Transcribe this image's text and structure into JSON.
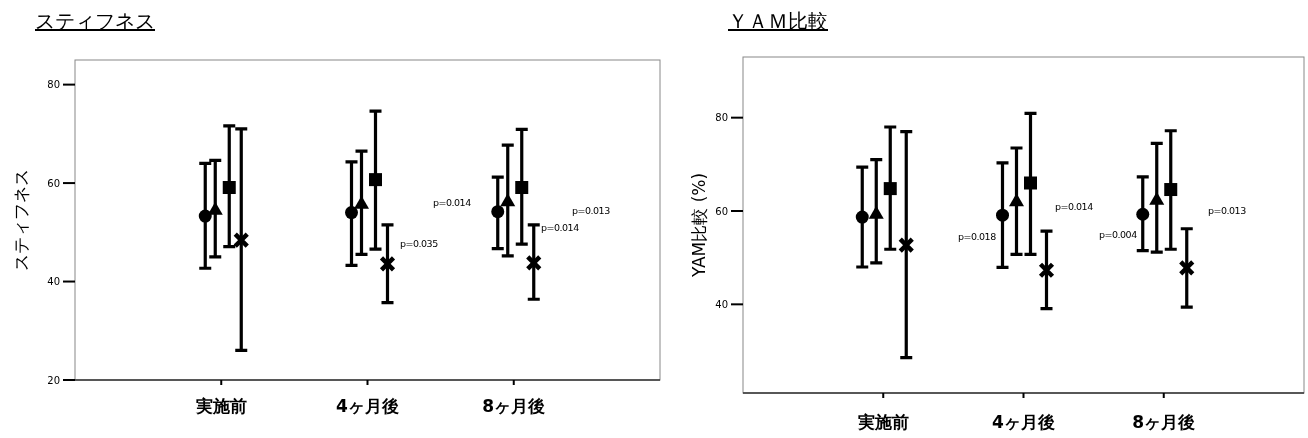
{
  "chart_data": [
    {
      "type": "scatter",
      "title": "スティフネス",
      "ylabel": "スティフネス",
      "categories": [
        "実施前",
        "4ヶ月後",
        "8ヶ月後"
      ],
      "ylim": [
        20,
        85
      ],
      "yticks": [
        20,
        40,
        60,
        80
      ],
      "grid": false,
      "series": [
        {
          "marker": "circle",
          "color": "#000000",
          "values": [
            53.3,
            54.0,
            54.2
          ],
          "errors": [
            [
              42.7,
              64.0
            ],
            [
              43.3,
              64.3
            ],
            [
              46.7,
              61.2
            ]
          ]
        },
        {
          "marker": "triangle",
          "color": "#000000",
          "values": [
            54.6,
            55.8,
            56.3
          ],
          "errors": [
            [
              45.0,
              64.6
            ],
            [
              45.5,
              66.5
            ],
            [
              45.2,
              67.7
            ]
          ]
        },
        {
          "marker": "square",
          "color": "#000000",
          "values": [
            59.1,
            60.7,
            59.1
          ],
          "errors": [
            [
              47.1,
              71.6
            ],
            [
              46.6,
              74.6
            ],
            [
              47.6,
              70.9
            ]
          ]
        },
        {
          "marker": "cross",
          "color": "#000000",
          "values": [
            48.4,
            43.6,
            43.8
          ],
          "errors": [
            [
              26.0,
              71.0
            ],
            [
              35.7,
              51.5
            ],
            [
              36.4,
              51.5
            ]
          ]
        }
      ],
      "annotations": [
        "p=0.014",
        "p=0.035",
        "p=0.013",
        "p=0.014"
      ]
    },
    {
      "type": "scatter",
      "title": "ＹＡＭ比較",
      "ylabel": "YAM比較 (%)",
      "categories": [
        "実施前",
        "4ヶ月後",
        "8ヶ月後"
      ],
      "ylim": [
        21,
        93
      ],
      "yticks": [
        40,
        60,
        80
      ],
      "grid": false,
      "series": [
        {
          "marker": "circle",
          "color": "#000000",
          "values": [
            58.7,
            59.1,
            59.3
          ],
          "errors": [
            [
              48.0,
              69.4
            ],
            [
              47.9,
              70.3
            ],
            [
              51.5,
              67.3
            ]
          ]
        },
        {
          "marker": "triangle",
          "color": "#000000",
          "values": [
            59.4,
            62.1,
            62.4
          ],
          "errors": [
            [
              48.9,
              71.0
            ],
            [
              50.7,
              73.5
            ],
            [
              51.2,
              74.5
            ]
          ]
        },
        {
          "marker": "square",
          "color": "#000000",
          "values": [
            64.8,
            66.0,
            64.6
          ],
          "errors": [
            [
              51.8,
              78.0
            ],
            [
              50.7,
              80.9
            ],
            [
              51.8,
              77.2
            ]
          ]
        },
        {
          "marker": "cross",
          "color": "#000000",
          "values": [
            52.7,
            47.3,
            47.8
          ],
          "errors": [
            [
              28.6,
              77.0
            ],
            [
              39.1,
              55.7
            ],
            [
              39.4,
              56.2
            ]
          ]
        }
      ],
      "annotations": [
        "p=0.018",
        "p=0.014",
        "p=0.004",
        "p=0.013"
      ]
    }
  ]
}
